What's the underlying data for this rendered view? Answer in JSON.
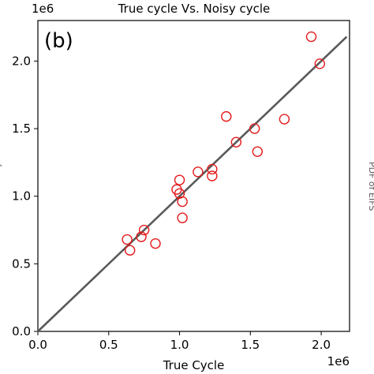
{
  "chart_data": {
    "type": "scatter",
    "title": "True cycle Vs. Noisy cycle",
    "panel_label": "(b)",
    "xlabel": "True Cycle",
    "ylabel_partial": "y",
    "right_edge_text": "PDF of EIFS",
    "x_offset_text": "1e6",
    "y_offset_text": "1e6",
    "xlim": [
      0,
      2.2
    ],
    "ylim": [
      0,
      2.3
    ],
    "x_scale": 1000000,
    "y_scale": 1000000,
    "x_ticks": [
      0.0,
      0.5,
      1.0,
      1.5,
      2.0
    ],
    "y_ticks": [
      0.0,
      0.5,
      1.0,
      1.5,
      2.0
    ],
    "x_tick_labels": [
      "0.0",
      "0.5",
      "1.0",
      "1.5",
      "2.0"
    ],
    "y_tick_labels": [
      "0.0",
      "0.5",
      "1.0",
      "1.5",
      "2.0"
    ],
    "grid": false,
    "reference_line": {
      "from": [
        0,
        0
      ],
      "to": [
        2.18,
        2.18
      ],
      "color": "#595959"
    },
    "marker": {
      "shape": "open-circle",
      "color": "#e41a1c"
    },
    "points": [
      {
        "x": 0.63,
        "y": 0.68
      },
      {
        "x": 0.65,
        "y": 0.6
      },
      {
        "x": 0.73,
        "y": 0.7
      },
      {
        "x": 0.75,
        "y": 0.75
      },
      {
        "x": 0.83,
        "y": 0.65
      },
      {
        "x": 0.98,
        "y": 1.05
      },
      {
        "x": 1.0,
        "y": 1.02
      },
      {
        "x": 1.0,
        "y": 1.12
      },
      {
        "x": 1.02,
        "y": 0.96
      },
      {
        "x": 1.02,
        "y": 0.84
      },
      {
        "x": 1.13,
        "y": 1.18
      },
      {
        "x": 1.23,
        "y": 1.2
      },
      {
        "x": 1.23,
        "y": 1.15
      },
      {
        "x": 1.33,
        "y": 1.59
      },
      {
        "x": 1.4,
        "y": 1.4
      },
      {
        "x": 1.53,
        "y": 1.5
      },
      {
        "x": 1.55,
        "y": 1.33
      },
      {
        "x": 1.74,
        "y": 1.57
      },
      {
        "x": 1.93,
        "y": 2.18
      },
      {
        "x": 1.99,
        "y": 1.98
      }
    ]
  }
}
